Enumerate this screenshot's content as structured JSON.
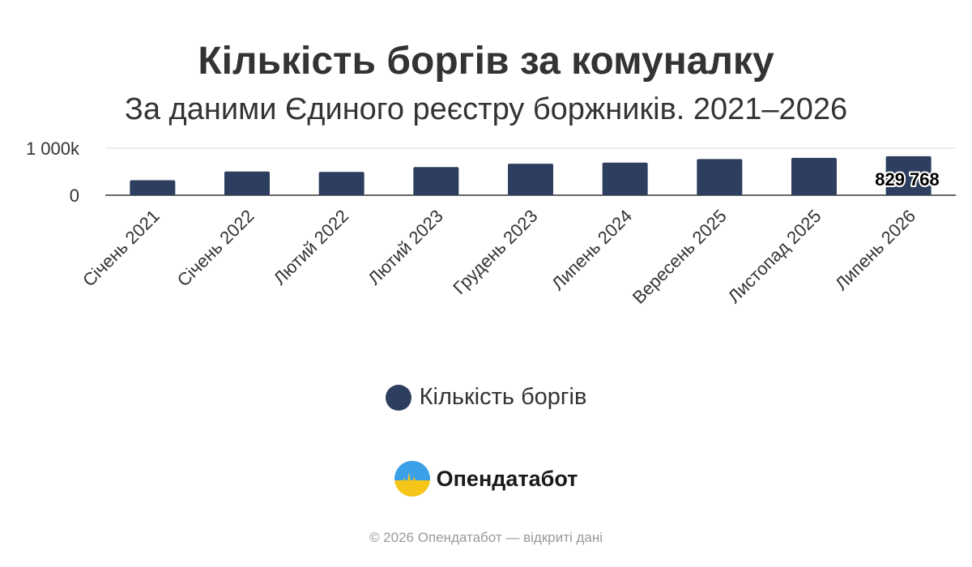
{
  "title": "Кількість боргів за комуналку",
  "subtitle": "За даними Єдиного реєстру боржників. 2021–2026",
  "colors": {
    "bar": "#2e3e5e",
    "grid": "#e6e6e6",
    "axis": "#333333",
    "text": "#333333",
    "credits": "#999999"
  },
  "chart_data": {
    "type": "bar",
    "categories": [
      "Січень 2021",
      "Січень 2022",
      "Лютий 2022",
      "Лютий 2023",
      "Грудень 2023",
      "Липень 2024",
      "Вересень 2025",
      "Листопад 2025",
      "Липень 2026"
    ],
    "series": [
      {
        "name": "Кількість боргів",
        "values": [
          320000,
          505000,
          495000,
          600000,
          670000,
          695000,
          770000,
          795000,
          829768
        ]
      }
    ],
    "ylim": [
      0,
      1000000
    ],
    "yticks": [
      0,
      1000000
    ],
    "ytick_labels": [
      "0",
      "1 000k"
    ],
    "data_labels": [
      {
        "index": 8,
        "text": "829 768"
      }
    ],
    "xlabel": "",
    "ylabel": "",
    "grid": true,
    "legend_position": "bottom"
  },
  "legend": {
    "label": "Кількість боргів"
  },
  "logo": {
    "text": "Опендатабот",
    "icon": "opendatabot-logo-icon"
  },
  "credits": "© 2026 Опендатабот — відкриті дані"
}
